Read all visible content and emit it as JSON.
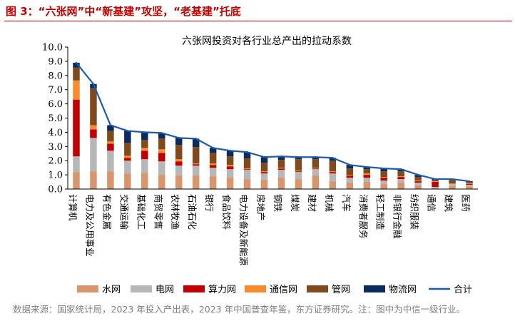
{
  "figure_title": "图 3：“六张网”中“新基建”攻坚，“老基建”托底",
  "source_note": "数据来源：国家统计局，2023 年投入产出表，2023 年中国普查年鉴，东方证券研究。注：图中为中信一级行业。",
  "chart_data": {
    "type": "bar",
    "stacked": true,
    "title": "六张网投资对各行业总产出的拉动系数",
    "xlabel": "",
    "ylabel": "",
    "ylim": [
      0,
      10
    ],
    "yticks": [
      "0.0",
      "1.0",
      "2.0",
      "3.0",
      "4.0",
      "5.0",
      "6.0",
      "7.0",
      "8.0",
      "9.0",
      "10.0"
    ],
    "grid": false,
    "legend_position": "bottom",
    "categories": [
      "计算机",
      "电力及公用事业",
      "有色金属",
      "交通运输",
      "基础化工",
      "商贸零售",
      "农林牧渔",
      "石油石化",
      "银行",
      "食品饮料",
      "电力设备及新能源",
      "房地产",
      "钢铁",
      "煤炭",
      "建材",
      "机械",
      "汽车",
      "消费者服务",
      "轻工制造",
      "非银行金融",
      "纺织服装",
      "通信",
      "建筑",
      "医药"
    ],
    "series": [
      {
        "name": "水网",
        "color": "#d9956b",
        "values": [
          1.2,
          1.25,
          1.25,
          1.1,
          1.15,
          1.0,
          0.95,
          0.95,
          0.9,
          0.8,
          0.7,
          0.65,
          0.8,
          0.7,
          0.95,
          0.55,
          0.45,
          0.5,
          0.35,
          0.45,
          0.25,
          0.05,
          0.2,
          0.2
        ]
      },
      {
        "name": "电网",
        "color": "#b7b7b7",
        "values": [
          1.1,
          2.35,
          1.45,
          0.9,
          0.95,
          0.95,
          0.7,
          0.7,
          0.6,
          0.6,
          0.65,
          0.45,
          0.55,
          0.5,
          0.45,
          0.55,
          0.35,
          0.3,
          0.25,
          0.25,
          0.2,
          0.1,
          0.15,
          0.1
        ]
      },
      {
        "name": "算力网",
        "color": "#c00000",
        "values": [
          4.0,
          0.6,
          0.5,
          0.2,
          0.6,
          0.6,
          0.3,
          0.1,
          0.2,
          0.2,
          0.05,
          0.1,
          0.1,
          0.05,
          0.05,
          0.1,
          0.15,
          0.2,
          0.2,
          0.15,
          0.1,
          0.35,
          0.0,
          0.05
        ]
      },
      {
        "name": "通信网",
        "color": "#f78b2d",
        "values": [
          1.35,
          0.3,
          0.15,
          0.15,
          0.2,
          0.25,
          0.15,
          0.05,
          0.1,
          0.1,
          0.05,
          0.05,
          0.05,
          0.05,
          0.05,
          0.05,
          0.05,
          0.1,
          0.05,
          0.05,
          0.05,
          0.05,
          0.05,
          0.05
        ]
      },
      {
        "name": "管网",
        "color": "#7f4a1e",
        "values": [
          0.9,
          2.6,
          0.75,
          0.9,
          0.55,
          0.75,
          1.0,
          1.15,
          0.75,
          0.6,
          0.7,
          0.6,
          0.55,
          0.8,
          0.6,
          0.75,
          0.45,
          0.3,
          0.4,
          0.35,
          0.25,
          0.1,
          0.25,
          0.1
        ]
      },
      {
        "name": "物流网",
        "color": "#0d2a5c",
        "values": [
          0.35,
          0.3,
          0.4,
          0.85,
          0.55,
          0.4,
          0.5,
          0.6,
          0.35,
          0.4,
          0.45,
          0.4,
          0.25,
          0.15,
          0.15,
          0.2,
          0.25,
          0.15,
          0.2,
          0.15,
          0.15,
          0.05,
          0.05,
          0.05
        ]
      }
    ],
    "total": {
      "name": "合计",
      "color": "#1f5ba8",
      "values": [
        8.9,
        7.4,
        4.5,
        4.1,
        4.0,
        3.95,
        3.6,
        3.55,
        2.9,
        2.7,
        2.6,
        2.25,
        2.3,
        2.25,
        2.25,
        2.2,
        1.7,
        1.55,
        1.45,
        1.4,
        1.0,
        0.7,
        0.7,
        0.55
      ]
    }
  }
}
